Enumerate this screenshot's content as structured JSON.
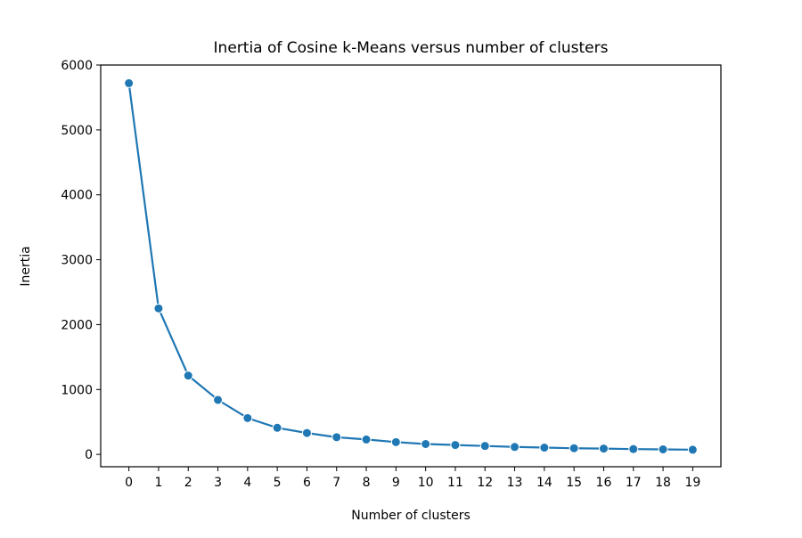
{
  "chart_data": {
    "type": "line",
    "title": "Inertia of Cosine k-Means versus number of clusters",
    "xlabel": "Number of clusters",
    "ylabel": "Inertia",
    "x": [
      0,
      1,
      2,
      3,
      4,
      5,
      6,
      7,
      8,
      9,
      10,
      11,
      12,
      13,
      14,
      15,
      16,
      17,
      18,
      19
    ],
    "y": [
      5720,
      2250,
      1215,
      840,
      560,
      410,
      330,
      265,
      230,
      190,
      160,
      145,
      130,
      115,
      105,
      95,
      90,
      82,
      78,
      72
    ],
    "xlim": [
      -0.95,
      19.95
    ],
    "ylim": [
      -190,
      6000
    ],
    "xticks": [
      "0",
      "1",
      "2",
      "3",
      "4",
      "5",
      "6",
      "7",
      "8",
      "9",
      "10",
      "11",
      "12",
      "13",
      "14",
      "15",
      "16",
      "17",
      "18",
      "19"
    ],
    "yticks": [
      "0",
      "1000",
      "2000",
      "3000",
      "4000",
      "5000",
      "6000"
    ],
    "grid": false,
    "marker": "circle",
    "colors": {
      "line": "#1f77b4",
      "axes": "#000000"
    }
  }
}
